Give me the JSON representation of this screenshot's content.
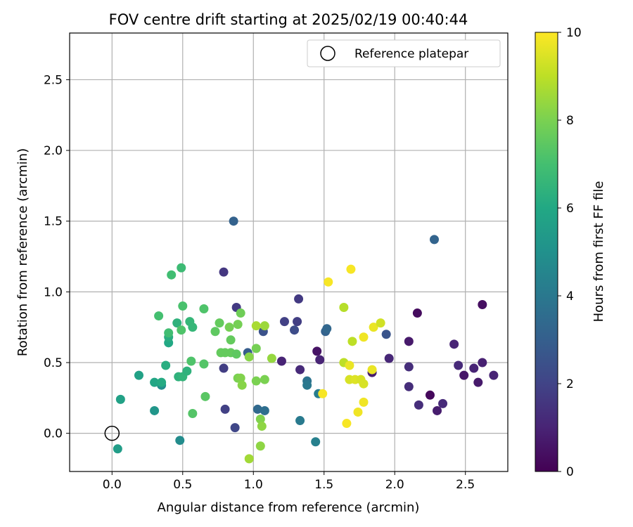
{
  "chart_data": {
    "type": "scatter",
    "title": "FOV centre drift starting at 2025/02/19 00:40:44",
    "xlabel": "Angular distance from reference (arcmin)",
    "ylabel": "Rotation from reference (arcmin)",
    "xlim": [
      -0.3,
      2.8
    ],
    "ylim": [
      -0.27,
      2.83
    ],
    "xticks": [
      0.0,
      0.5,
      1.0,
      1.5,
      2.0,
      2.5
    ],
    "yticks": [
      0.0,
      0.5,
      1.0,
      1.5,
      2.0,
      2.5
    ],
    "grid": true,
    "legend": {
      "position": "top-right",
      "entries": [
        "Reference platepar"
      ]
    },
    "reference_point": {
      "x": 0.0,
      "y": 0.0,
      "marker": "open-circle"
    },
    "colorbar": {
      "label": "Hours from first FF file",
      "range": [
        0,
        10
      ],
      "ticks": [
        0,
        2,
        4,
        6,
        8,
        10
      ],
      "colormap": "viridis"
    },
    "points": [
      {
        "x": 2.16,
        "y": 0.85,
        "h": 0.3
      },
      {
        "x": 2.25,
        "y": 0.27,
        "h": 0.2
      },
      {
        "x": 2.62,
        "y": 0.91,
        "h": 0.4
      },
      {
        "x": 2.1,
        "y": 0.65,
        "h": 0.7
      },
      {
        "x": 2.3,
        "y": 0.16,
        "h": 0.8
      },
      {
        "x": 2.49,
        "y": 0.41,
        "h": 0.6
      },
      {
        "x": 2.59,
        "y": 0.36,
        "h": 0.7
      },
      {
        "x": 2.56,
        "y": 0.46,
        "h": 1.0
      },
      {
        "x": 2.62,
        "y": 0.5,
        "h": 0.9
      },
      {
        "x": 2.7,
        "y": 0.41,
        "h": 1.0
      },
      {
        "x": 2.42,
        "y": 0.63,
        "h": 1.0
      },
      {
        "x": 2.45,
        "y": 0.48,
        "h": 1.2
      },
      {
        "x": 2.34,
        "y": 0.21,
        "h": 1.2
      },
      {
        "x": 2.17,
        "y": 0.2,
        "h": 1.3
      },
      {
        "x": 2.1,
        "y": 0.47,
        "h": 1.3
      },
      {
        "x": 2.1,
        "y": 0.33,
        "h": 1.3
      },
      {
        "x": 1.96,
        "y": 0.53,
        "h": 1.1
      },
      {
        "x": 1.45,
        "y": 0.58,
        "h": 0.5
      },
      {
        "x": 1.47,
        "y": 0.52,
        "h": 1.0
      },
      {
        "x": 1.84,
        "y": 0.43,
        "h": 0.8
      },
      {
        "x": 1.33,
        "y": 0.45,
        "h": 1.2
      },
      {
        "x": 1.2,
        "y": 0.51,
        "h": 1.0
      },
      {
        "x": 1.22,
        "y": 0.79,
        "h": 1.9
      },
      {
        "x": 1.32,
        "y": 0.95,
        "h": 1.7
      },
      {
        "x": 1.31,
        "y": 0.79,
        "h": 1.8
      },
      {
        "x": 1.29,
        "y": 0.73,
        "h": 2.3
      },
      {
        "x": 0.79,
        "y": 1.14,
        "h": 1.6
      },
      {
        "x": 0.88,
        "y": 0.89,
        "h": 1.7
      },
      {
        "x": 0.79,
        "y": 0.46,
        "h": 1.8
      },
      {
        "x": 0.8,
        "y": 0.17,
        "h": 1.9
      },
      {
        "x": 0.87,
        "y": 0.04,
        "h": 2.1
      },
      {
        "x": 1.07,
        "y": 0.72,
        "h": 2.5
      },
      {
        "x": 1.94,
        "y": 0.7,
        "h": 2.6
      },
      {
        "x": 2.28,
        "y": 1.37,
        "h": 3.2
      },
      {
        "x": 0.86,
        "y": 1.5,
        "h": 3.1
      },
      {
        "x": 0.96,
        "y": 0.57,
        "h": 2.9
      },
      {
        "x": 1.51,
        "y": 0.72,
        "h": 3.1
      },
      {
        "x": 1.52,
        "y": 0.74,
        "h": 3.3
      },
      {
        "x": 1.03,
        "y": 0.17,
        "h": 3.4
      },
      {
        "x": 1.08,
        "y": 0.16,
        "h": 3.6
      },
      {
        "x": 1.38,
        "y": 0.37,
        "h": 3.8
      },
      {
        "x": 1.38,
        "y": 0.34,
        "h": 4.0
      },
      {
        "x": 1.33,
        "y": 0.09,
        "h": 4.1
      },
      {
        "x": 1.46,
        "y": 0.28,
        "h": 4.2
      },
      {
        "x": 1.44,
        "y": -0.06,
        "h": 4.3
      },
      {
        "x": 0.48,
        "y": -0.05,
        "h": 4.8
      },
      {
        "x": 0.35,
        "y": 0.34,
        "h": 4.9
      },
      {
        "x": 0.3,
        "y": 0.16,
        "h": 5.2
      },
      {
        "x": 0.04,
        "y": -0.11,
        "h": 5.5
      },
      {
        "x": 0.06,
        "y": 0.24,
        "h": 5.7
      },
      {
        "x": 0.19,
        "y": 0.41,
        "h": 5.7
      },
      {
        "x": 0.3,
        "y": 0.36,
        "h": 5.9
      },
      {
        "x": 0.35,
        "y": 0.36,
        "h": 6.1
      },
      {
        "x": 0.4,
        "y": 0.64,
        "h": 6.0
      },
      {
        "x": 0.4,
        "y": 0.68,
        "h": 6.2
      },
      {
        "x": 0.38,
        "y": 0.48,
        "h": 6.2
      },
      {
        "x": 0.47,
        "y": 0.4,
        "h": 6.4
      },
      {
        "x": 0.5,
        "y": 0.4,
        "h": 6.5
      },
      {
        "x": 0.53,
        "y": 0.44,
        "h": 6.4
      },
      {
        "x": 0.46,
        "y": 0.78,
        "h": 6.4
      },
      {
        "x": 0.55,
        "y": 0.79,
        "h": 6.6
      },
      {
        "x": 0.57,
        "y": 0.75,
        "h": 6.6
      },
      {
        "x": 0.42,
        "y": 1.12,
        "h": 6.9
      },
      {
        "x": 0.49,
        "y": 1.17,
        "h": 6.8
      },
      {
        "x": 0.4,
        "y": 0.71,
        "h": 6.9
      },
      {
        "x": 0.33,
        "y": 0.83,
        "h": 7.0
      },
      {
        "x": 0.5,
        "y": 0.9,
        "h": 7.1
      },
      {
        "x": 0.49,
        "y": 0.73,
        "h": 7.2
      },
      {
        "x": 0.56,
        "y": 0.51,
        "h": 7.2
      },
      {
        "x": 0.65,
        "y": 0.49,
        "h": 7.3
      },
      {
        "x": 0.65,
        "y": 0.88,
        "h": 7.2
      },
      {
        "x": 0.57,
        "y": 0.14,
        "h": 7.3
      },
      {
        "x": 0.66,
        "y": 0.26,
        "h": 7.4
      },
      {
        "x": 0.73,
        "y": 0.72,
        "h": 7.5
      },
      {
        "x": 0.76,
        "y": 0.78,
        "h": 7.6
      },
      {
        "x": 0.77,
        "y": 0.57,
        "h": 7.6
      },
      {
        "x": 0.8,
        "y": 0.57,
        "h": 7.6
      },
      {
        "x": 0.84,
        "y": 0.57,
        "h": 7.6
      },
      {
        "x": 0.88,
        "y": 0.56,
        "h": 7.5
      },
      {
        "x": 0.84,
        "y": 0.66,
        "h": 7.6
      },
      {
        "x": 0.83,
        "y": 0.75,
        "h": 7.9
      },
      {
        "x": 0.89,
        "y": 0.77,
        "h": 7.9
      },
      {
        "x": 0.91,
        "y": 0.85,
        "h": 7.8
      },
      {
        "x": 0.89,
        "y": 0.39,
        "h": 8.0
      },
      {
        "x": 0.91,
        "y": 0.39,
        "h": 8.1
      },
      {
        "x": 0.92,
        "y": 0.34,
        "h": 8.2
      },
      {
        "x": 0.97,
        "y": 0.54,
        "h": 8.2
      },
      {
        "x": 1.02,
        "y": 0.6,
        "h": 7.9
      },
      {
        "x": 1.02,
        "y": 0.37,
        "h": 8.0
      },
      {
        "x": 1.08,
        "y": 0.38,
        "h": 8.0
      },
      {
        "x": 1.13,
        "y": 0.53,
        "h": 8.4
      },
      {
        "x": 1.08,
        "y": 0.76,
        "h": 8.5
      },
      {
        "x": 1.02,
        "y": 0.76,
        "h": 8.7
      },
      {
        "x": 1.05,
        "y": 0.1,
        "h": 8.1
      },
      {
        "x": 1.06,
        "y": 0.05,
        "h": 8.3
      },
      {
        "x": 1.05,
        "y": -0.09,
        "h": 8.3
      },
      {
        "x": 0.97,
        "y": -0.18,
        "h": 8.6
      },
      {
        "x": 1.64,
        "y": 0.89,
        "h": 8.9
      },
      {
        "x": 1.64,
        "y": 0.5,
        "h": 9.0
      },
      {
        "x": 1.7,
        "y": 0.65,
        "h": 9.0
      },
      {
        "x": 1.68,
        "y": 0.38,
        "h": 9.4
      },
      {
        "x": 1.72,
        "y": 0.38,
        "h": 9.5
      },
      {
        "x": 1.76,
        "y": 0.38,
        "h": 9.4
      },
      {
        "x": 1.78,
        "y": 0.35,
        "h": 9.4
      },
      {
        "x": 1.68,
        "y": 0.48,
        "h": 9.7
      },
      {
        "x": 1.84,
        "y": 0.45,
        "h": 9.7
      },
      {
        "x": 1.85,
        "y": 0.75,
        "h": 9.7
      },
      {
        "x": 1.9,
        "y": 0.78,
        "h": 9.3
      },
      {
        "x": 1.78,
        "y": 0.68,
        "h": 9.8
      },
      {
        "x": 1.78,
        "y": 0.22,
        "h": 9.8
      },
      {
        "x": 1.74,
        "y": 0.15,
        "h": 9.8
      },
      {
        "x": 1.66,
        "y": 0.07,
        "h": 9.9
      },
      {
        "x": 1.49,
        "y": 0.28,
        "h": 9.9
      },
      {
        "x": 1.53,
        "y": 1.07,
        "h": 9.9
      },
      {
        "x": 1.69,
        "y": 1.16,
        "h": 9.9
      }
    ]
  }
}
